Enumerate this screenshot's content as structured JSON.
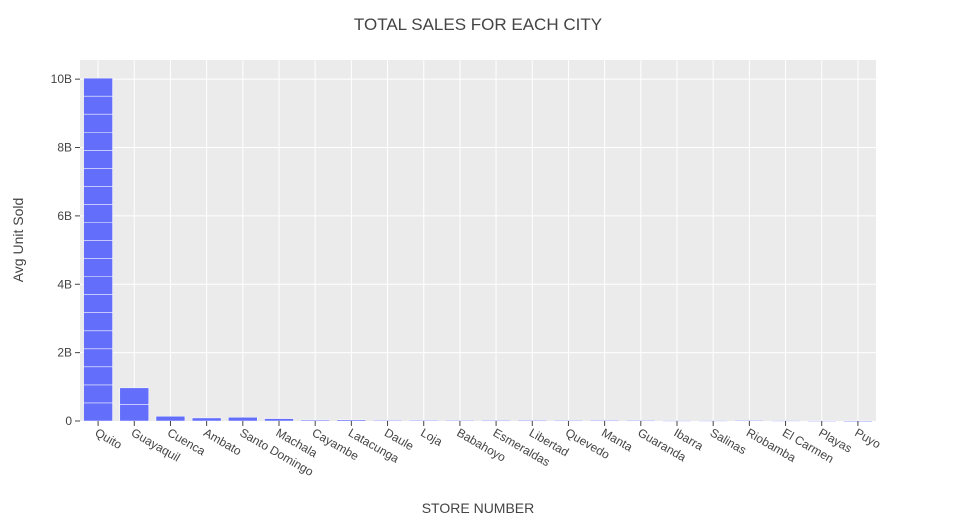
{
  "chart_data": {
    "type": "bar",
    "title": "TOTAL SALES FOR EACH CITY",
    "xlabel": "STORE NUMBER",
    "ylabel": "Avg Unit Sold",
    "categories": [
      "Quito",
      "Guayaquil",
      "Cuenca",
      "Ambato",
      "Santo Domingo",
      "Machala",
      "Cayambe",
      "Latacunga",
      "Daule",
      "Loja",
      "Babahoyo",
      "Esmeraldas",
      "Libertad",
      "Quevedo",
      "Manta",
      "Guaranda",
      "Ibarra",
      "Salinas",
      "Riobamba",
      "El Carmen",
      "Playas",
      "Puyo"
    ],
    "values": [
      10030000000,
      970000000,
      140000000,
      90000000,
      110000000,
      70000000,
      30000000,
      35000000,
      20000000,
      25000000,
      15000000,
      20000000,
      18000000,
      15000000,
      20000000,
      15000000,
      12000000,
      12000000,
      15000000,
      12000000,
      10000000,
      5000000
    ],
    "ylim": [
      0,
      10560000000
    ],
    "yticks": [
      0,
      2000000000,
      4000000000,
      6000000000,
      8000000000,
      10000000000
    ],
    "ytick_labels": [
      "0",
      "2B",
      "4B",
      "6B",
      "8B",
      "10B"
    ],
    "grid": true,
    "colors": {
      "bar": "#636efa",
      "plot_bg": "#ebebeb",
      "grid": "#ffffff",
      "text": "#444444"
    }
  }
}
